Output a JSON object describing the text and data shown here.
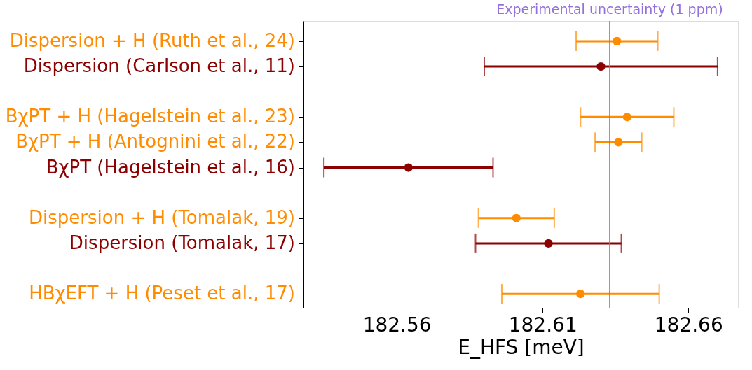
{
  "chart_data": {
    "type": "scatter",
    "orientation": "horizontal",
    "xlabel": "E_HFS [meV]",
    "categories": [
      "Dispersion + H  (Ruth et al., 24)",
      "Dispersion (Carlson et al., 11)",
      null,
      "BχPT + H (Hagelstein et al., 23)",
      "BχPT + H (Antognini et al., 22)",
      "BχPT (Hagelstein et al., 16)",
      null,
      "Dispersion + H (Tomalak, 19)",
      "Dispersion (Tomalak, 17)",
      null,
      "HBχEFT + H  (Peset et al., 17)"
    ],
    "values": [
      182.6355,
      182.63,
      null,
      182.639,
      182.636,
      182.564,
      null,
      182.601,
      182.612,
      null,
      182.623
    ],
    "errors": [
      0.014,
      0.04,
      null,
      0.016,
      0.008,
      0.029,
      null,
      0.013,
      0.025,
      null,
      0.027
    ],
    "colors": [
      "#ff8c00",
      "#8b0000",
      null,
      "#ff8c00",
      "#ff8c00",
      "#8b0000",
      null,
      "#ff8c00",
      "#8b0000",
      null,
      "#ff8c00"
    ],
    "marker": "circle",
    "xlim": [
      182.528,
      182.677
    ],
    "xticks": [
      182.56,
      182.61,
      182.66
    ],
    "ref_lines": [
      {
        "axis": "x",
        "value": 182.633,
        "label": "Experimental uncertainty (1 ppm)",
        "color": "#9370db"
      }
    ],
    "grid": false
  }
}
